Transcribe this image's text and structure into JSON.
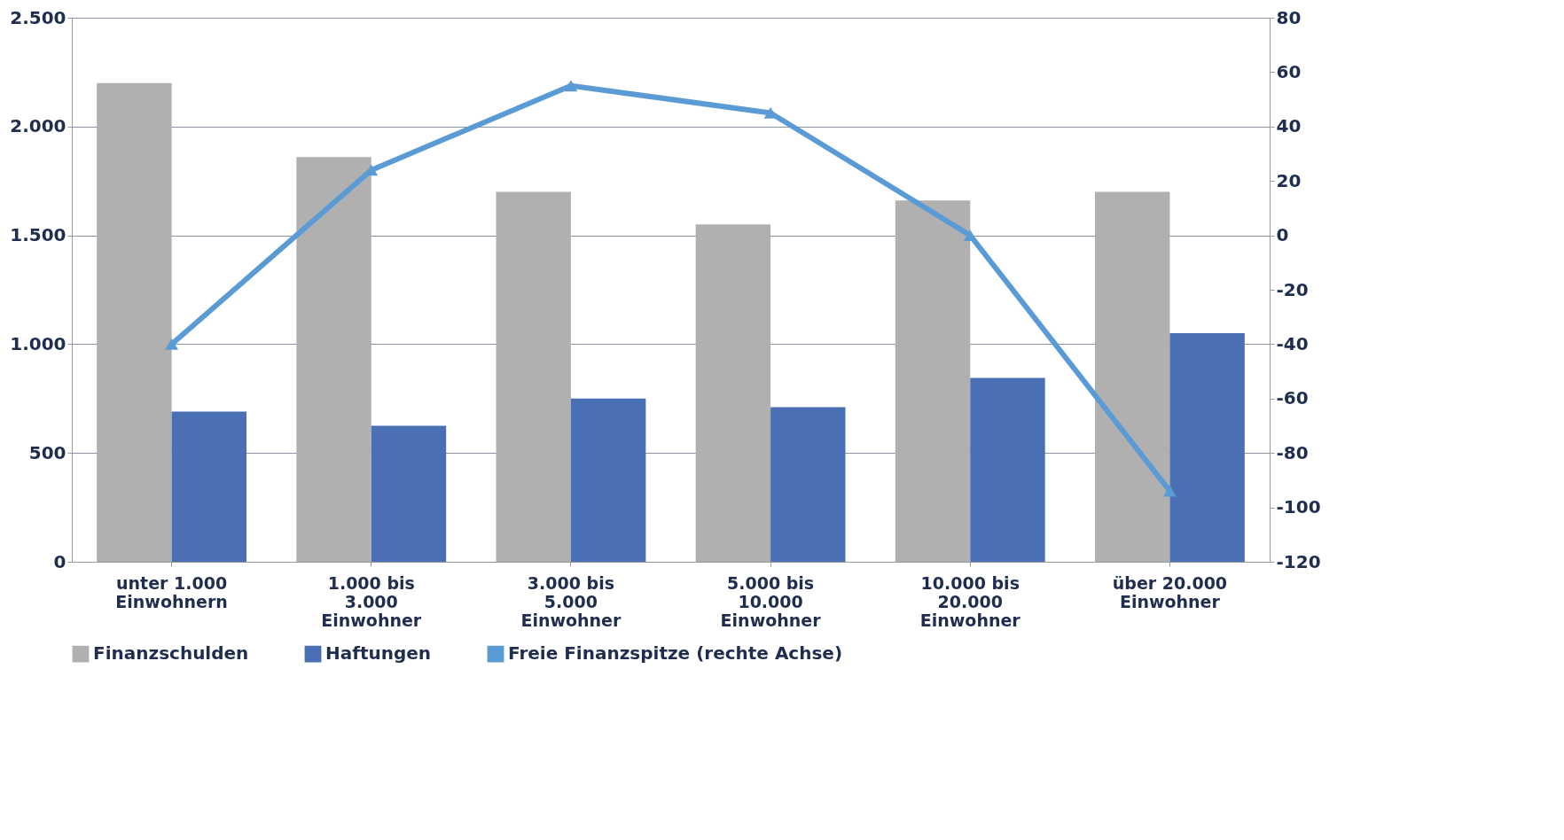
{
  "chart_data": {
    "type": "bar",
    "categories": [
      "unter 1.000\nEinwohnern",
      "1.000 bis\n3.000\nEinwohner",
      "3.000 bis\n5.000\nEinwohner",
      "5.000 bis\n10.000\nEinwohner",
      "10.000 bis\n20.000\nEinwohner",
      "über 20.000\nEinwohner"
    ],
    "series": [
      {
        "name": "Finanzschulden",
        "color": "#b0b0b0",
        "values": [
          2200,
          1860,
          1700,
          1550,
          1660,
          1700
        ]
      },
      {
        "name": "Haftungen",
        "color": "#4a6fb5",
        "values": [
          690,
          625,
          750,
          710,
          845,
          1050
        ]
      },
      {
        "name": "Freie Finanzspitze (rechte Achse)",
        "color": "#5b9bd5",
        "type": "line",
        "axis": "y2",
        "marker": "triangle",
        "values": [
          -40,
          24,
          55,
          45,
          0,
          -94
        ]
      }
    ],
    "ylim": [
      0,
      2500
    ],
    "yticks": [
      0,
      500,
      {
        "value": 1000,
        "label": "1.000"
      },
      {
        "value": 1500,
        "label": "1.500"
      },
      {
        "value": 2000,
        "label": "2.000"
      },
      {
        "value": 2500,
        "label": "2.500"
      }
    ],
    "y2lim": [
      -120,
      80
    ],
    "y2ticks": [
      -120,
      -100,
      -80,
      -60,
      -40,
      -20,
      0,
      20,
      40,
      60,
      80
    ],
    "grid": "y",
    "legend": "bottom"
  }
}
